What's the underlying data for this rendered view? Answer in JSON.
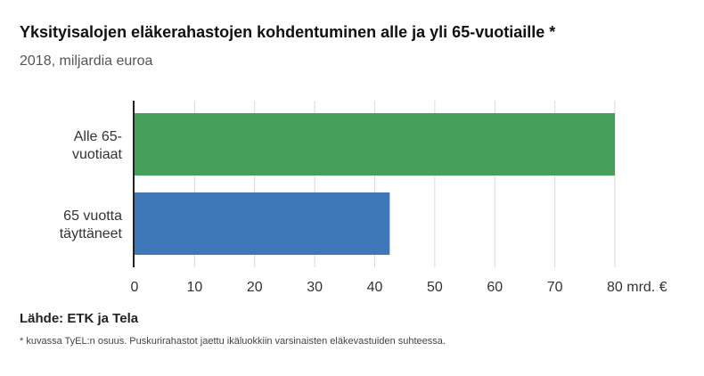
{
  "header": {
    "title": "Yksityisalojen eläkerahastojen kohdentuminen alle ja yli 65-vuotiaille *",
    "subtitle": "2018, miljardia euroa"
  },
  "footer": {
    "source": "Lähde: ETK ja Tela",
    "note": "* kuvassa TyEL:n osuus. Puskurirahastot jaettu ikäluokkiin varsinaisten eläkevastuiden suhteessa."
  },
  "chart_data": {
    "type": "bar",
    "orientation": "horizontal",
    "categories": [
      [
        "Alle 65-",
        "vuotiaat"
      ],
      [
        "65 vuotta",
        "täyttäneet"
      ]
    ],
    "values": [
      80,
      42.5
    ],
    "colors": [
      "#46a05c",
      "#3f78b8"
    ],
    "xlim": [
      0,
      80
    ],
    "xticks": [
      "0",
      "10",
      "20",
      "30",
      "40",
      "50",
      "60",
      "70",
      "80 mrd. €"
    ],
    "grid": true
  }
}
